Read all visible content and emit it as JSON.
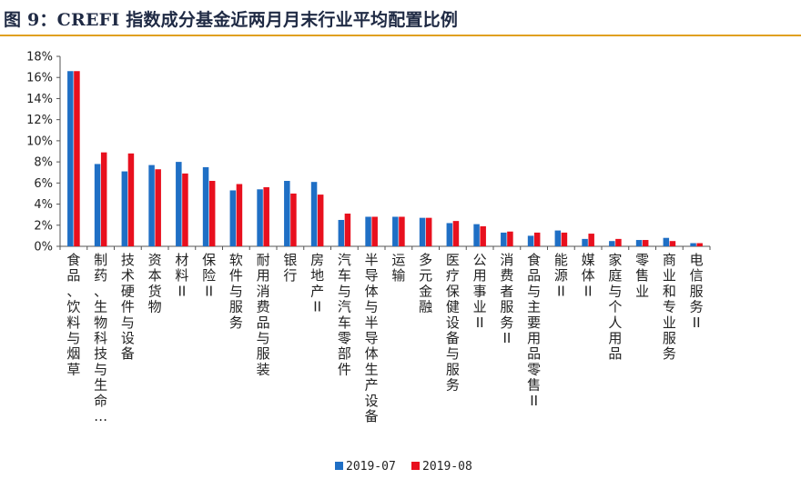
{
  "figure": {
    "title": "图 9：CREFI 指数成分基金近两月月末行业平均配置比例"
  },
  "colors": {
    "series_2019_07": "#1f6fc5",
    "series_2019_08": "#e8101e",
    "title_rule": "#e0a020"
  },
  "chart_data": {
    "type": "bar",
    "title": "",
    "xlabel": "",
    "ylabel": "",
    "ylim": [
      0,
      18
    ],
    "yticks": [
      "0%",
      "2%",
      "4%",
      "6%",
      "8%",
      "10%",
      "12%",
      "14%",
      "16%",
      "18%"
    ],
    "grid": false,
    "legend_position": "bottom",
    "categories": [
      "食品、饮料与烟草",
      "制药、生物科技与生命…",
      "技术硬件与设备",
      "资本货物",
      "材料II",
      "保险II",
      "软件与服务",
      "耐用消费品与服装",
      "银行",
      "房地产II",
      "汽车与汽车零部件",
      "半导体与半导体生产设备",
      "运输",
      "多元金融",
      "医疗保健设备与服务",
      "公用事业II",
      "消费者服务II",
      "食品与主要用品零售II",
      "能源II",
      "媒体II",
      "家庭与个人用品",
      "零售业",
      "商业和专业服务",
      "电信服务II"
    ],
    "series": [
      {
        "name": "2019-07",
        "values": [
          16.6,
          7.8,
          7.1,
          7.7,
          8.0,
          7.5,
          5.3,
          5.4,
          6.2,
          6.1,
          2.5,
          2.8,
          2.8,
          2.7,
          2.2,
          2.1,
          1.3,
          1.0,
          1.5,
          0.7,
          0.5,
          0.6,
          0.8,
          0.3
        ]
      },
      {
        "name": "2019-08",
        "values": [
          16.6,
          8.9,
          8.8,
          7.3,
          6.9,
          6.2,
          5.9,
          5.6,
          5.0,
          4.9,
          3.1,
          2.8,
          2.8,
          2.7,
          2.4,
          1.9,
          1.4,
          1.3,
          1.3,
          1.2,
          0.7,
          0.6,
          0.5,
          0.3
        ]
      }
    ]
  }
}
